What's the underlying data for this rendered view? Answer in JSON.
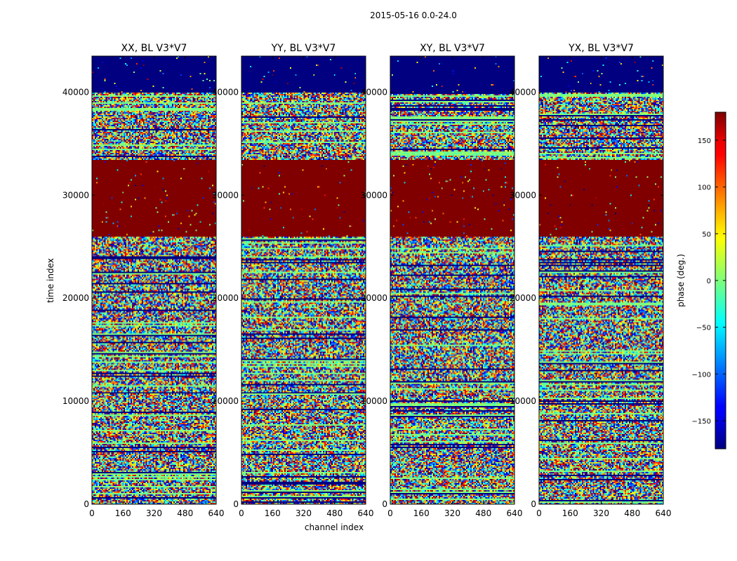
{
  "figure": {
    "suptitle": "2015-05-16 0.0-24.0"
  },
  "chart_data": {
    "type": "heatmap",
    "title": "2015-05-16 0.0-24.0",
    "xlabel": "channel index",
    "ylabel": "time index",
    "xlim": [
      0,
      640
    ],
    "ylim": [
      0,
      43500
    ],
    "x_ticks": [
      "0",
      "160",
      "320",
      "480",
      "640"
    ],
    "y_ticks": [
      "0",
      "10000",
      "20000",
      "30000",
      "40000"
    ],
    "x_tick_values": [
      0,
      160,
      320,
      480,
      640
    ],
    "y_tick_values": [
      0,
      10000,
      20000,
      30000,
      40000
    ],
    "panels": [
      {
        "title": "XX, BL V3*V7"
      },
      {
        "title": "YY, BL V3*V7"
      },
      {
        "title": "XY, BL V3*V7"
      },
      {
        "title": "YX, BL V3*V7"
      }
    ],
    "bands": [
      {
        "from": 40000,
        "to": 43500,
        "value": -180
      },
      {
        "from": 26000,
        "to": 33500,
        "value": 180
      }
    ],
    "colorbar": {
      "label": "phase (deg.)",
      "min": -180,
      "max": 180,
      "ticks": [
        "150",
        "100",
        "50",
        "0",
        "−50",
        "−100",
        "−150"
      ],
      "tick_values": [
        150,
        100,
        50,
        0,
        -50,
        -100,
        -150
      ],
      "colormap": "jet"
    },
    "grid": false,
    "legend": "none"
  }
}
